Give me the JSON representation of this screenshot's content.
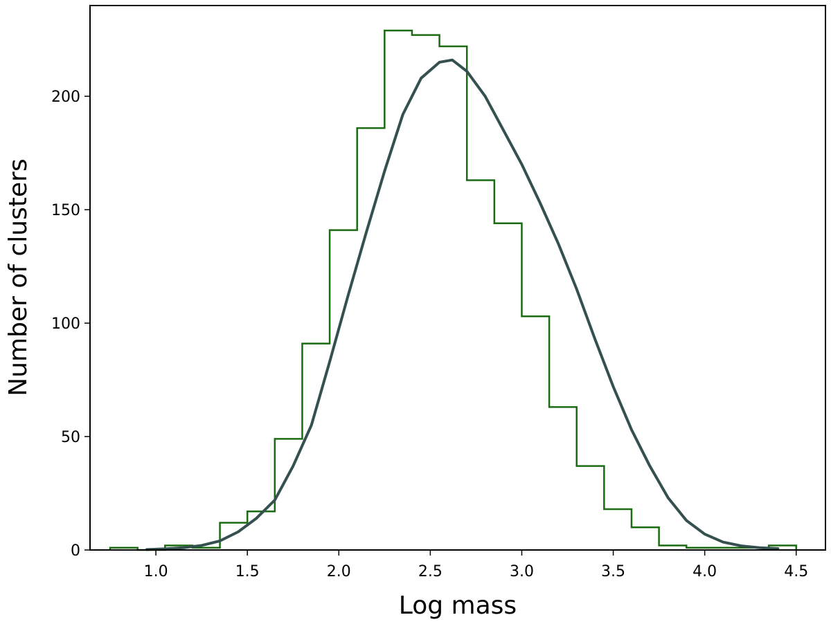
{
  "chart_data": {
    "type": "histogram",
    "title": "",
    "xlabel": "Log mass",
    "ylabel": "Number of clusters",
    "xlim": [
      0.64,
      4.66
    ],
    "ylim": [
      0,
      240
    ],
    "xticks": [
      "1.0",
      "1.5",
      "2.0",
      "2.5",
      "3.0",
      "3.5",
      "4.0",
      "4.5"
    ],
    "yticks": [
      "0",
      "50",
      "100",
      "150",
      "200"
    ],
    "grid": false,
    "legend": "none",
    "series": [
      {
        "kind": "step-histogram",
        "color": "#1a6b12",
        "bin_edges": [
          0.75,
          0.9,
          1.05,
          1.2,
          1.35,
          1.5,
          1.65,
          1.8,
          1.95,
          2.1,
          2.25,
          2.4,
          2.55,
          2.7,
          2.85,
          3.0,
          3.15,
          3.3,
          3.45,
          3.6,
          3.75,
          3.9,
          4.05,
          4.2,
          4.35,
          4.5
        ],
        "counts": [
          1,
          0,
          2,
          1,
          12,
          17,
          49,
          91,
          141,
          186,
          229,
          227,
          222,
          163,
          144,
          103,
          63,
          37,
          18,
          10,
          2,
          1,
          1,
          1,
          2
        ]
      },
      {
        "kind": "line",
        "color": "#34504f",
        "x": [
          0.95,
          1.05,
          1.15,
          1.25,
          1.35,
          1.45,
          1.55,
          1.65,
          1.75,
          1.85,
          1.95,
          2.05,
          2.15,
          2.25,
          2.35,
          2.45,
          2.55,
          2.62,
          2.7,
          2.8,
          2.9,
          3.0,
          3.1,
          3.2,
          3.3,
          3.4,
          3.5,
          3.6,
          3.7,
          3.8,
          3.9,
          4.0,
          4.1,
          4.2,
          4.3,
          4.4
        ],
        "y": [
          0.2,
          0.5,
          1,
          2,
          4,
          8,
          14,
          22,
          37,
          55,
          83,
          112,
          140,
          167,
          192,
          208,
          215,
          216,
          211,
          200,
          185,
          170,
          153,
          135,
          115,
          93,
          72,
          53,
          37,
          23,
          13,
          7,
          3.5,
          1.8,
          1.0,
          0.6
        ]
      }
    ]
  }
}
